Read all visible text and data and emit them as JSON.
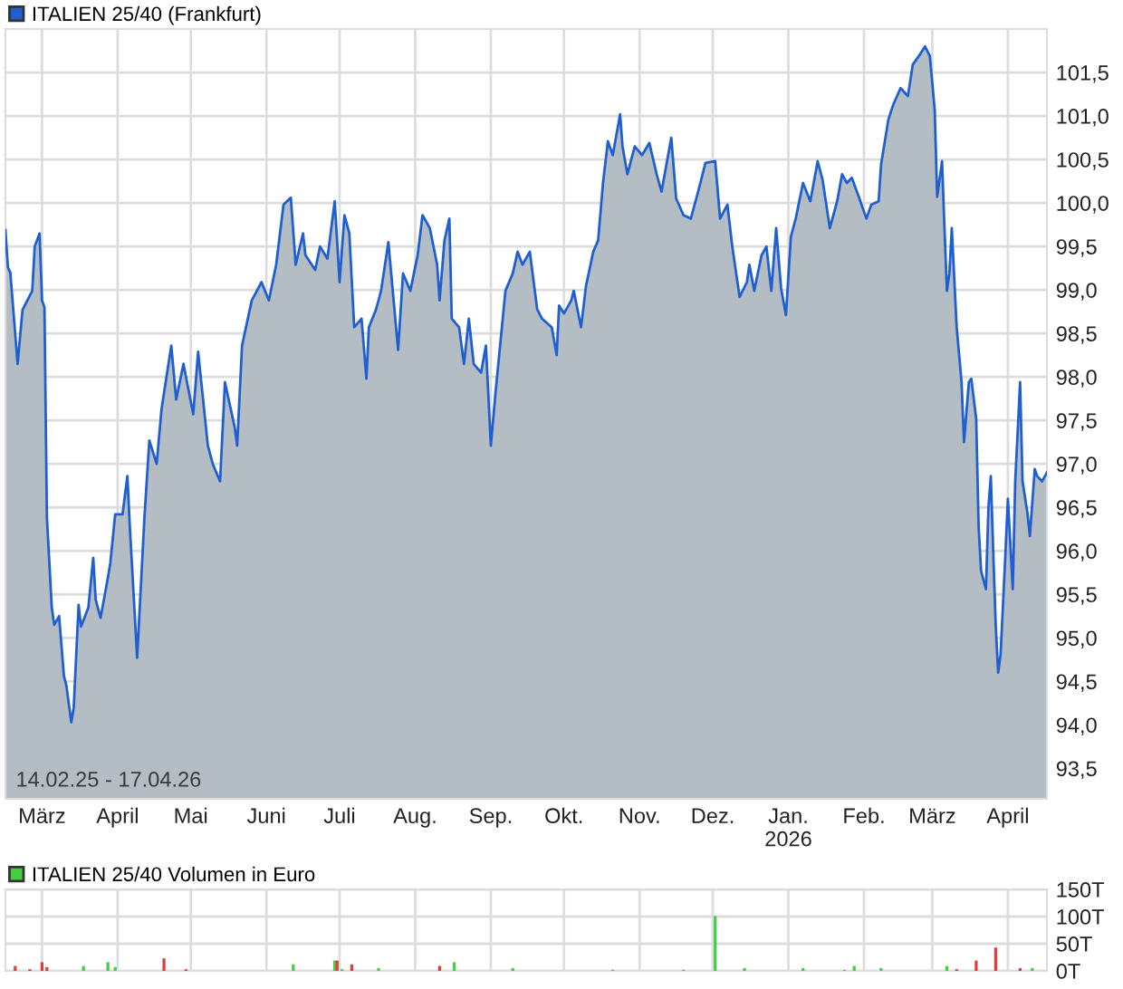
{
  "chart_data": [
    {
      "type": "area",
      "xlim": [
        "2025-02-14",
        "2026-04-17"
      ],
      "ylim": [
        93.15,
        102.0
      ],
      "yticks": [
        {
          "value": 93.5,
          "label": "93,5"
        },
        {
          "value": 94.0,
          "label": "94,0"
        },
        {
          "value": 94.5,
          "label": "94,5"
        },
        {
          "value": 95.0,
          "label": "95,0"
        },
        {
          "value": 95.5,
          "label": "95,5"
        },
        {
          "value": 96.0,
          "label": "96,0"
        },
        {
          "value": 96.5,
          "label": "96,5"
        },
        {
          "value": 97.0,
          "label": "97,0"
        },
        {
          "value": 97.5,
          "label": "97,5"
        },
        {
          "value": 98.0,
          "label": "98,0"
        },
        {
          "value": 98.5,
          "label": "98,5"
        },
        {
          "value": 99.0,
          "label": "99,0"
        },
        {
          "value": 99.5,
          "label": "99,5"
        },
        {
          "value": 100.0,
          "label": "100,0"
        },
        {
          "value": 100.5,
          "label": "100,5"
        },
        {
          "value": 101.0,
          "label": "101,0"
        },
        {
          "value": 101.5,
          "label": "101,5"
        }
      ],
      "xticks": [
        {
          "value": "2025-03-01",
          "label": "März"
        },
        {
          "value": "2025-04-01",
          "label": "April"
        },
        {
          "value": "2025-05-01",
          "label": "Mai"
        },
        {
          "value": "2025-06-01",
          "label": "Juni"
        },
        {
          "value": "2025-07-01",
          "label": "Juli"
        },
        {
          "value": "2025-08-01",
          "label": "Aug."
        },
        {
          "value": "2025-09-01",
          "label": "Sep."
        },
        {
          "value": "2025-10-01",
          "label": "Okt."
        },
        {
          "value": "2025-11-01",
          "label": "Nov."
        },
        {
          "value": "2025-12-01",
          "label": "Dez."
        },
        {
          "value": "2026-01-01",
          "label": "Jan.\n2026"
        },
        {
          "value": "2026-02-01",
          "label": "Feb."
        },
        {
          "value": "2026-03-01",
          "label": "März"
        },
        {
          "value": "2026-04-01",
          "label": "April"
        }
      ],
      "grid": true,
      "legend": "top left",
      "annotations": [
        "14.02.25 - 17.04.26"
      ],
      "series": [
        {
          "name": "ITALIEN 25/40 (Frankfurt)",
          "color": "#1f5fcf",
          "x": [
            "2025-02-14",
            "2025-02-15",
            "2025-02-16",
            "2025-02-18",
            "2025-02-19",
            "2025-02-21",
            "2025-02-23",
            "2025-02-25",
            "2025-02-26",
            "2025-02-28",
            "2025-03-01",
            "2025-03-02",
            "2025-03-03",
            "2025-03-05",
            "2025-03-06",
            "2025-03-08",
            "2025-03-10",
            "2025-03-11",
            "2025-03-13",
            "2025-03-14",
            "2025-03-16",
            "2025-03-17",
            "2025-03-20",
            "2025-03-22",
            "2025-03-23",
            "2025-03-25",
            "2025-03-28",
            "2025-03-29",
            "2025-03-31",
            "2025-04-03",
            "2025-04-05",
            "2025-04-06",
            "2025-04-09",
            "2025-04-12",
            "2025-04-14",
            "2025-04-17",
            "2025-04-19",
            "2025-04-23",
            "2025-04-25",
            "2025-04-28",
            "2025-05-02",
            "2025-05-04",
            "2025-05-08",
            "2025-05-10",
            "2025-05-13",
            "2025-05-15",
            "2025-05-19",
            "2025-05-20",
            "2025-05-22",
            "2025-05-26",
            "2025-05-30",
            "2025-06-02",
            "2025-06-05",
            "2025-06-08",
            "2025-06-11",
            "2025-06-13",
            "2025-06-16",
            "2025-06-17",
            "2025-06-21",
            "2025-06-23",
            "2025-06-26",
            "2025-06-29",
            "2025-07-01",
            "2025-07-03",
            "2025-07-05",
            "2025-07-07",
            "2025-07-10",
            "2025-07-12",
            "2025-07-13",
            "2025-07-16",
            "2025-07-18",
            "2025-07-21",
            "2025-07-25",
            "2025-07-27",
            "2025-07-30",
            "2025-08-02",
            "2025-08-04",
            "2025-08-07",
            "2025-08-10",
            "2025-08-11",
            "2025-08-13",
            "2025-08-15",
            "2025-08-16",
            "2025-08-19",
            "2025-08-21",
            "2025-08-23",
            "2025-08-25",
            "2025-08-28",
            "2025-08-30",
            "2025-09-01",
            "2025-09-03",
            "2025-09-07",
            "2025-09-10",
            "2025-09-12",
            "2025-09-14",
            "2025-09-17",
            "2025-09-20",
            "2025-09-22",
            "2025-09-26",
            "2025-09-28",
            "2025-09-29",
            "2025-10-01",
            "2025-10-04",
            "2025-10-05",
            "2025-10-08",
            "2025-10-10",
            "2025-10-13",
            "2025-10-15",
            "2025-10-17",
            "2025-10-19",
            "2025-10-21",
            "2025-10-24",
            "2025-10-25",
            "2025-10-27",
            "2025-10-30",
            "2025-11-02",
            "2025-11-05",
            "2025-11-08",
            "2025-11-10",
            "2025-11-12",
            "2025-11-14",
            "2025-11-16",
            "2025-11-19",
            "2025-11-22",
            "2025-11-25",
            "2025-11-28",
            "2025-12-02",
            "2025-12-04",
            "2025-12-07",
            "2025-12-09",
            "2025-12-12",
            "2025-12-15",
            "2025-12-16",
            "2025-12-18",
            "2025-12-21",
            "2025-12-23",
            "2025-12-25",
            "2025-12-27",
            "2025-12-29",
            "2025-12-31",
            "2026-01-02",
            "2026-01-04",
            "2026-01-07",
            "2026-01-10",
            "2026-01-13",
            "2026-01-15",
            "2026-01-18",
            "2026-01-21",
            "2026-01-23",
            "2026-01-25",
            "2026-01-27",
            "2026-01-30",
            "2026-02-02",
            "2026-02-04",
            "2026-02-07",
            "2026-02-08",
            "2026-02-11",
            "2026-02-13",
            "2026-02-16",
            "2026-02-19",
            "2026-02-21",
            "2026-02-24",
            "2026-02-26",
            "2026-02-28",
            "2026-03-02",
            "2026-03-03",
            "2026-03-05",
            "2026-03-06",
            "2026-03-07",
            "2026-03-08",
            "2026-03-09",
            "2026-03-11",
            "2026-03-13",
            "2026-03-14",
            "2026-03-16",
            "2026-03-17",
            "2026-03-19",
            "2026-03-20",
            "2026-03-21",
            "2026-03-23",
            "2026-03-24",
            "2026-03-25",
            "2026-03-26",
            "2026-03-27",
            "2026-03-28",
            "2026-03-29",
            "2026-03-31",
            "2026-04-01",
            "2026-04-03",
            "2026-04-04",
            "2026-04-06",
            "2026-04-07",
            "2026-04-09",
            "2026-04-10",
            "2026-04-12",
            "2026-04-13",
            "2026-04-15",
            "2026-04-17"
          ],
          "values": [
            99.69,
            99.26,
            99.2,
            98.5,
            98.15,
            98.77,
            98.88,
            98.99,
            99.5,
            99.65,
            98.88,
            98.8,
            96.39,
            95.35,
            95.15,
            95.25,
            94.56,
            94.45,
            94.03,
            94.2,
            95.38,
            95.13,
            95.35,
            95.92,
            95.44,
            95.23,
            95.69,
            95.86,
            96.42,
            96.42,
            96.86,
            96.28,
            94.77,
            96.39,
            97.27,
            97.0,
            97.63,
            98.36,
            97.74,
            98.15,
            97.57,
            98.29,
            97.21,
            97.0,
            96.8,
            97.94,
            97.42,
            97.21,
            98.36,
            98.88,
            99.09,
            98.88,
            99.29,
            99.98,
            100.06,
            99.29,
            99.65,
            99.4,
            99.23,
            99.5,
            99.36,
            100.02,
            99.09,
            99.86,
            99.65,
            98.57,
            98.67,
            97.98,
            98.57,
            98.78,
            98.99,
            99.55,
            98.31,
            99.19,
            98.99,
            99.4,
            99.86,
            99.71,
            99.29,
            98.88,
            99.57,
            99.82,
            98.67,
            98.57,
            98.15,
            98.67,
            98.15,
            98.05,
            98.36,
            97.21,
            97.84,
            98.99,
            99.19,
            99.44,
            99.29,
            99.44,
            98.78,
            98.67,
            98.57,
            98.25,
            98.82,
            98.73,
            98.88,
            98.99,
            98.57,
            99.04,
            99.44,
            99.57,
            100.23,
            100.71,
            100.55,
            101.02,
            100.65,
            100.33,
            100.65,
            100.55,
            100.69,
            100.33,
            100.13,
            100.44,
            100.75,
            100.05,
            99.86,
            99.82,
            100.13,
            100.46,
            100.48,
            99.82,
            99.98,
            99.5,
            98.92,
            99.09,
            99.29,
            98.99,
            99.4,
            99.5,
            98.99,
            99.71,
            99.02,
            98.71,
            99.61,
            99.82,
            100.23,
            100.02,
            100.48,
            100.27,
            99.71,
            100.02,
            100.33,
            100.23,
            100.29,
            100.06,
            99.82,
            99.98,
            100.02,
            100.44,
            100.96,
            101.13,
            101.32,
            101.23,
            101.59,
            101.71,
            101.8,
            101.69,
            101.07,
            100.07,
            100.48,
            99.71,
            98.99,
            99.19,
            99.71,
            98.57,
            97.94,
            97.25,
            97.94,
            97.98,
            97.52,
            96.28,
            95.77,
            95.56,
            96.49,
            96.86,
            95.98,
            95.15,
            94.6,
            94.81,
            95.98,
            96.6,
            95.56,
            96.8,
            97.94,
            96.8,
            96.44,
            96.17,
            96.94,
            96.86,
            96.8,
            96.9
          ]
        }
      ]
    },
    {
      "type": "bar",
      "xlim": [
        "2025-02-14",
        "2026-04-17"
      ],
      "ylim": [
        0,
        150
      ],
      "yticks": [
        {
          "value": 0,
          "label": "0T"
        },
        {
          "value": 50,
          "label": "50T"
        },
        {
          "value": 100,
          "label": "100T"
        },
        {
          "value": 150,
          "label": "150T"
        }
      ],
      "xticks": [
        {
          "value": "2025-03-01",
          "label": null
        },
        {
          "value": "2025-04-01",
          "label": null
        },
        {
          "value": "2025-05-01",
          "label": null
        },
        {
          "value": "2025-06-01",
          "label": null
        },
        {
          "value": "2025-07-01",
          "label": null
        },
        {
          "value": "2025-08-01",
          "label": null
        },
        {
          "value": "2025-09-01",
          "label": null
        },
        {
          "value": "2025-10-01",
          "label": null
        },
        {
          "value": "2025-11-01",
          "label": null
        },
        {
          "value": "2025-12-01",
          "label": null
        },
        {
          "value": "2026-01-01",
          "label": null
        },
        {
          "value": "2026-02-01",
          "label": null
        },
        {
          "value": "2026-03-01",
          "label": null
        },
        {
          "value": "2026-04-01",
          "label": null
        }
      ],
      "tick_labels": "y",
      "grid": true,
      "legend": "top left",
      "series": [
        {
          "name": "ITALIEN 25/40 Volumen in Euro",
          "color": "#44cc44",
          "x": [
            "2025-02-18",
            "2025-02-24",
            "2025-03-01",
            "2025-03-03",
            "2025-03-18",
            "2025-03-28",
            "2025-03-31",
            "2025-04-20",
            "2025-04-29",
            "2025-06-12",
            "2025-06-29",
            "2025-06-30",
            "2025-07-02",
            "2025-07-06",
            "2025-07-17",
            "2025-08-11",
            "2025-08-17",
            "2025-09-10",
            "2025-10-21",
            "2025-11-19",
            "2025-12-02",
            "2025-12-14",
            "2026-01-07",
            "2026-01-24",
            "2026-01-28",
            "2026-02-08",
            "2026-03-07",
            "2026-03-11",
            "2026-03-19",
            "2026-03-27",
            "2026-04-06",
            "2026-04-11"
          ],
          "values": [
            9,
            3,
            16,
            7,
            9,
            16,
            7,
            23,
            3,
            12,
            19,
            19,
            3,
            12,
            5,
            9,
            16,
            5,
            2,
            2,
            101,
            5,
            5,
            2,
            9,
            5,
            9,
            3,
            19,
            43,
            5,
            5
          ],
          "colors": [
            "#e03c3c",
            "#e03c3c",
            "#e03c3c",
            "#e03c3c",
            "#44cc44",
            "#44cc44",
            "#44cc44",
            "#e03c3c",
            "#e03c3c",
            "#44cc44",
            "#44cc44",
            "#e03c3c",
            "#44cc44",
            "#e03c3c",
            "#44cc44",
            "#e03c3c",
            "#44cc44",
            "#44cc44",
            "#44cc44",
            "#44cc44",
            "#44cc44",
            "#44cc44",
            "#44cc44",
            "#44cc44",
            "#44cc44",
            "#44cc44",
            "#44cc44",
            "#e03c3c",
            "#e03c3c",
            "#e03c3c",
            "#e03c3c",
            "#44cc44"
          ]
        }
      ]
    }
  ]
}
